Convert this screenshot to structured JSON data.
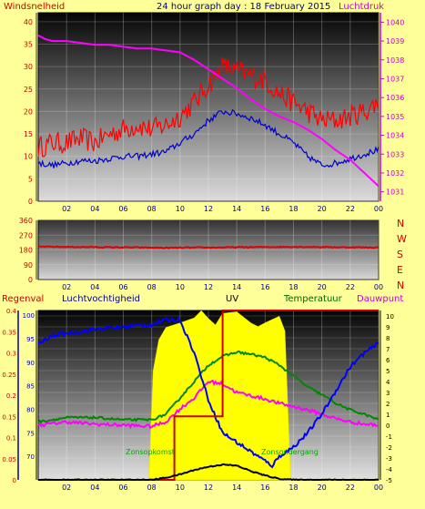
{
  "header": {
    "left_title": "Windsnelheid",
    "center_title": "24 hour graph day : 18 February 2015",
    "right_title": "Luchtdruk"
  },
  "colors": {
    "background": "#ffff99",
    "wind_gust": "#ff0000",
    "wind_avg": "#0000cc",
    "pressure": "#ff00ff",
    "rain": "#cc0000",
    "humidity": "#0000ff",
    "uv_fill": "#ffff00",
    "temperature": "#008800",
    "dewpoint": "#ff00ff",
    "solar": "#000000"
  },
  "x_ticks": [
    "02",
    "04",
    "06",
    "08",
    "10",
    "12",
    "14",
    "16",
    "18",
    "20",
    "22",
    "00"
  ],
  "compass_labels": [
    "N",
    "W",
    "S",
    "E",
    "N"
  ],
  "chart_data": [
    {
      "type": "line",
      "name": "wind-pressure",
      "y_left": {
        "label": "Windsnelheid",
        "ticks": [
          0,
          5,
          10,
          15,
          20,
          25,
          30,
          35,
          40
        ],
        "range": [
          0,
          42
        ]
      },
      "y_right": {
        "label": "Luchtdruk",
        "ticks": [
          1031,
          1032,
          1033,
          1034,
          1035,
          1036,
          1037,
          1038,
          1039,
          1040
        ],
        "range": [
          1030.5,
          1040.5
        ]
      },
      "x_range": [
        0,
        24
      ],
      "series": [
        {
          "color": "#ff0000",
          "axis": "left",
          "noise": 2.5,
          "points": [
            [
              0,
              12
            ],
            [
              1,
              13
            ],
            [
              2,
              13
            ],
            [
              3,
              14
            ],
            [
              4,
              13
            ],
            [
              5,
              15
            ],
            [
              6,
              16
            ],
            [
              7,
              17
            ],
            [
              8,
              16
            ],
            [
              9,
              17
            ],
            [
              10,
              19
            ],
            [
              11,
              22
            ],
            [
              12,
              26
            ],
            [
              13,
              30
            ],
            [
              14,
              29
            ],
            [
              15,
              28
            ],
            [
              16,
              27
            ],
            [
              17,
              24
            ],
            [
              18,
              22
            ],
            [
              19,
              20
            ],
            [
              20,
              18
            ],
            [
              21,
              18
            ],
            [
              22,
              19
            ],
            [
              23,
              20
            ],
            [
              24,
              22
            ]
          ]
        },
        {
          "color": "#0000cc",
          "axis": "left",
          "noise": 0.7,
          "points": [
            [
              0,
              8.5
            ],
            [
              1,
              8
            ],
            [
              2,
              8.5
            ],
            [
              3,
              9
            ],
            [
              4,
              9
            ],
            [
              5,
              9.5
            ],
            [
              6,
              10
            ],
            [
              7,
              10
            ],
            [
              8,
              10.5
            ],
            [
              9,
              11
            ],
            [
              10,
              13
            ],
            [
              11,
              15
            ],
            [
              12,
              18
            ],
            [
              13,
              20
            ],
            [
              14,
              19.5
            ],
            [
              15,
              18.5
            ],
            [
              16,
              17
            ],
            [
              17,
              15
            ],
            [
              18,
              13
            ],
            [
              19,
              10
            ],
            [
              20,
              8
            ],
            [
              21,
              8.5
            ],
            [
              22,
              9.5
            ],
            [
              23,
              10.5
            ],
            [
              24,
              11.5
            ]
          ]
        },
        {
          "color": "#ff00ff",
          "axis": "right",
          "noise": 0,
          "points": [
            [
              0,
              1039.3
            ],
            [
              0.5,
              1039.1
            ],
            [
              1,
              1039.0
            ],
            [
              2,
              1039.0
            ],
            [
              3,
              1038.9
            ],
            [
              4,
              1038.8
            ],
            [
              5,
              1038.8
            ],
            [
              6,
              1038.7
            ],
            [
              7,
              1038.6
            ],
            [
              8,
              1038.6
            ],
            [
              9,
              1038.5
            ],
            [
              10,
              1038.4
            ],
            [
              11,
              1038.0
            ],
            [
              12,
              1037.5
            ],
            [
              13,
              1037.0
            ],
            [
              14,
              1036.5
            ],
            [
              15,
              1035.9
            ],
            [
              16,
              1035.4
            ],
            [
              17,
              1035.0
            ],
            [
              18,
              1034.7
            ],
            [
              19,
              1034.3
            ],
            [
              20,
              1033.8
            ],
            [
              21,
              1033.2
            ],
            [
              22,
              1032.7
            ],
            [
              23,
              1032.0
            ],
            [
              24,
              1031.3
            ]
          ]
        }
      ]
    },
    {
      "type": "line",
      "name": "wind-direction",
      "y_left": {
        "ticks": [
          0,
          90,
          180,
          270,
          360
        ],
        "range": [
          0,
          360
        ]
      },
      "x_range": [
        0,
        24
      ],
      "series": [
        {
          "color": "#dd0000",
          "axis": "left",
          "noise": 3,
          "points": [
            [
              0,
              200
            ],
            [
              3,
              198
            ],
            [
              6,
              196
            ],
            [
              9,
              193
            ],
            [
              12,
              195
            ],
            [
              15,
              197
            ],
            [
              18,
              199
            ],
            [
              21,
              197
            ],
            [
              24,
              195
            ]
          ]
        }
      ]
    },
    {
      "type": "line",
      "name": "rain-humidity-uv-temperature",
      "labels": [
        "Regenval",
        "Luchtvochtigheid",
        "UV",
        "Temperatuur",
        "Dauwpunt"
      ],
      "annotations": [
        "Zonsopkomst",
        "Zonsondergang"
      ],
      "y_rain": {
        "ticks": [
          "0",
          "0.05",
          "0.1",
          "0.15",
          "0.2",
          "0.25",
          "0.3",
          "0.35",
          "0.4"
        ],
        "range": [
          0,
          0.4
        ]
      },
      "y_humidity": {
        "ticks": [
          70,
          75,
          80,
          85,
          90,
          95,
          100
        ],
        "range": [
          65,
          101
        ]
      },
      "y_temp": {
        "ticks": [
          -5,
          -4,
          -3,
          -2,
          -1,
          0,
          1,
          2,
          3,
          4,
          5,
          6,
          7,
          8,
          9,
          10
        ],
        "range": [
          -5,
          10.5
        ]
      },
      "x_range": [
        0,
        24
      ],
      "uv_band": [
        [
          7.8,
          0
        ],
        [
          8.1,
          14
        ],
        [
          8.5,
          17
        ],
        [
          9,
          19
        ],
        [
          10,
          20
        ],
        [
          11,
          20.5
        ],
        [
          11.5,
          21
        ],
        [
          12,
          20
        ],
        [
          12.5,
          19
        ],
        [
          13,
          21
        ],
        [
          14,
          21
        ],
        [
          15,
          19
        ],
        [
          15.5,
          19.5
        ],
        [
          16,
          19
        ],
        [
          17,
          20
        ],
        [
          17.4,
          19
        ],
        [
          17.8,
          0
        ]
      ],
      "series": [
        {
          "color": "#ff00ff",
          "axis": "temp",
          "noise": 0.15,
          "points": [
            [
              0,
              0
            ],
            [
              2,
              0.3
            ],
            [
              4,
              0.1
            ],
            [
              6,
              0
            ],
            [
              8,
              -0.1
            ],
            [
              9,
              0.3
            ],
            [
              10,
              1.5
            ],
            [
              11,
              2.5
            ],
            [
              12,
              4
            ],
            [
              13,
              3.8
            ],
            [
              14,
              3.0
            ],
            [
              15,
              2.7
            ],
            [
              16,
              2.4
            ],
            [
              17,
              2.0
            ],
            [
              18,
              1.7
            ],
            [
              19,
              1.4
            ],
            [
              20,
              1.0
            ],
            [
              21,
              0.6
            ],
            [
              22,
              0.3
            ],
            [
              23,
              0.1
            ],
            [
              24,
              0
            ]
          ]
        },
        {
          "color": "#008800",
          "axis": "temp",
          "noise": 0.1,
          "points": [
            [
              0,
              0.3
            ],
            [
              2,
              0.7
            ],
            [
              4,
              0.7
            ],
            [
              6,
              0.5
            ],
            [
              8,
              0.5
            ],
            [
              9,
              1
            ],
            [
              10,
              2.5
            ],
            [
              11,
              4
            ],
            [
              12,
              5.5
            ],
            [
              13,
              6.3
            ],
            [
              14,
              6.7
            ],
            [
              15,
              6.5
            ],
            [
              16,
              6.2
            ],
            [
              17,
              5.5
            ],
            [
              18,
              4.5
            ],
            [
              19,
              3.5
            ],
            [
              20,
              2.8
            ],
            [
              21,
              2.0
            ],
            [
              22,
              1.4
            ],
            [
              23,
              1.0
            ],
            [
              24,
              0.5
            ]
          ]
        },
        {
          "color": "#0000ff",
          "axis": "humidity",
          "noise": 0.4,
          "points": [
            [
              0,
              94
            ],
            [
              1,
              95.5
            ],
            [
              1.5,
              96
            ],
            [
              3,
              96.5
            ],
            [
              4,
              97
            ],
            [
              6,
              97.5
            ],
            [
              8,
              98
            ],
            [
              9,
              99
            ],
            [
              10,
              99
            ],
            [
              11,
              92
            ],
            [
              12,
              82
            ],
            [
              13,
              75
            ],
            [
              14,
              73
            ],
            [
              15,
              71
            ],
            [
              16,
              69
            ],
            [
              16.5,
              68
            ],
            [
              17,
              70
            ],
            [
              18,
              72
            ],
            [
              19,
              75
            ],
            [
              20,
              79
            ],
            [
              21,
              84
            ],
            [
              22,
              89
            ],
            [
              23,
              92
            ],
            [
              24,
              94
            ]
          ]
        },
        {
          "color": "#cc0000",
          "axis": "rain",
          "noise": 0,
          "step": true,
          "points": [
            [
              0,
              0
            ],
            [
              9.6,
              0
            ],
            [
              9.6,
              0.15
            ],
            [
              13,
              0.15
            ],
            [
              13,
              0.4
            ],
            [
              24,
              0.4
            ]
          ]
        },
        {
          "color": "#000000",
          "axis": "temp",
          "noise": 0.05,
          "points": [
            [
              0,
              -5
            ],
            [
              8,
              -5
            ],
            [
              9,
              -4.8
            ],
            [
              10,
              -4.5
            ],
            [
              11,
              -4.1
            ],
            [
              12,
              -3.8
            ],
            [
              13,
              -3.6
            ],
            [
              14,
              -3.7
            ],
            [
              15,
              -4.2
            ],
            [
              16,
              -4.6
            ],
            [
              17,
              -4.9
            ],
            [
              18,
              -5
            ],
            [
              24,
              -5
            ]
          ]
        }
      ]
    }
  ]
}
